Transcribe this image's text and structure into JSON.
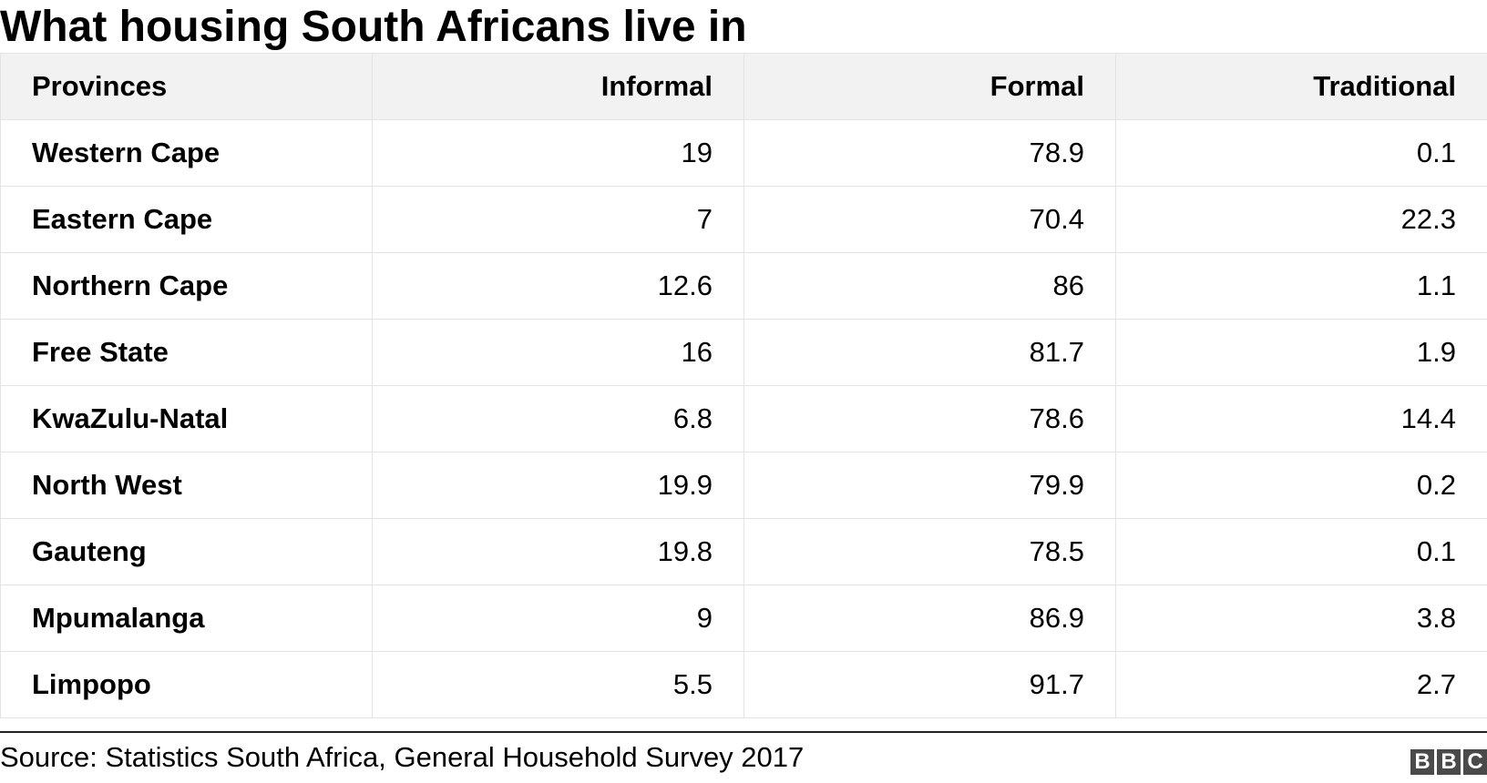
{
  "title": "What housing South Africans live in",
  "source": "Source: Statistics South Africa, General Household Survey 2017",
  "logo": [
    "B",
    "B",
    "C"
  ],
  "chart_data": {
    "type": "table",
    "title": "What housing South Africans live in",
    "columns": [
      "Provinces",
      "Informal",
      "Formal",
      "Traditional"
    ],
    "rows": [
      [
        "Western Cape",
        "19",
        "78.9",
        "0.1"
      ],
      [
        "Eastern Cape",
        "7",
        "70.4",
        "22.3"
      ],
      [
        "Northern Cape",
        "12.6",
        "86",
        "1.1"
      ],
      [
        "Free State",
        "16",
        "81.7",
        "1.9"
      ],
      [
        "KwaZulu-Natal",
        "6.8",
        "78.6",
        "14.4"
      ],
      [
        "North West",
        "19.9",
        "79.9",
        "0.2"
      ],
      [
        "Gauteng",
        "19.8",
        "78.5",
        "0.1"
      ],
      [
        "Mpumalanga",
        "9",
        "86.9",
        "3.8"
      ],
      [
        "Limpopo",
        "5.5",
        "91.7",
        "2.7"
      ]
    ]
  },
  "colors": {
    "header_bg": "#f2f2f2",
    "border": "#e3e3e3",
    "logo_block": "#4a4a4a"
  }
}
